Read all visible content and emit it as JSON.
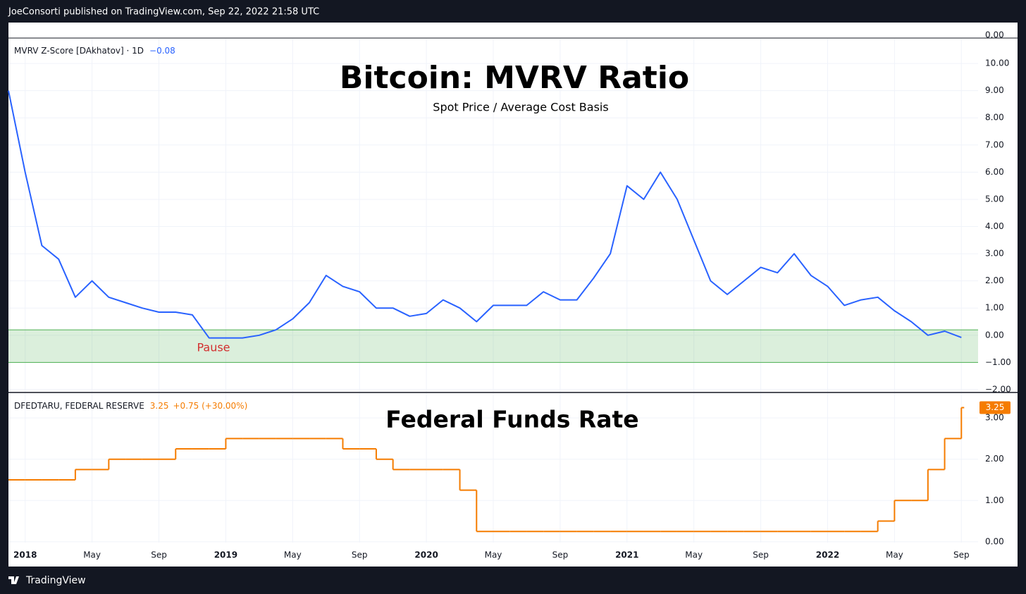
{
  "header": {
    "text": "JoeConsorti published on TradingView.com, Sep 22, 2022 21:58 UTC",
    "top_pane_label": "0.00"
  },
  "footer": {
    "brand": "TradingView"
  },
  "chart_data": [
    {
      "type": "line",
      "title": "Bitcoin: MVRV Ratio",
      "subtitle": "Spot Price / Average Cost Basis",
      "legend_value": "−0.08",
      "annotations": [
        {
          "text": "Pause"
        }
      ],
      "band": [
        -1,
        0.2
      ],
      "band_color": "#4caf50",
      "grid": true,
      "x": [
        "2017-12",
        "2018-01",
        "2018-02",
        "2018-03",
        "2018-04",
        "2018-05",
        "2018-06",
        "2018-07",
        "2018-08",
        "2018-09",
        "2018-10",
        "2018-11",
        "2018-12",
        "2019-01",
        "2019-02",
        "2019-03",
        "2019-04",
        "2019-05",
        "2019-06",
        "2019-07",
        "2019-08",
        "2019-09",
        "2019-10",
        "2019-11",
        "2019-12",
        "2020-01",
        "2020-02",
        "2020-03",
        "2020-04",
        "2020-05",
        "2020-06",
        "2020-07",
        "2020-08",
        "2020-09",
        "2020-10",
        "2020-11",
        "2020-12",
        "2021-01",
        "2021-02",
        "2021-03",
        "2021-04",
        "2021-05",
        "2021-06",
        "2021-07",
        "2021-08",
        "2021-09",
        "2021-10",
        "2021-11",
        "2021-12",
        "2022-01",
        "2022-02",
        "2022-03",
        "2022-04",
        "2022-05",
        "2022-06",
        "2022-07",
        "2022-08",
        "2022-09"
      ],
      "series": [
        {
          "name": "MVRV Z-Score [DAkhatov] · 1D",
          "color": "#2962ff",
          "values": [
            9.0,
            6.0,
            3.3,
            2.8,
            1.4,
            2.0,
            1.4,
            1.2,
            1.0,
            0.85,
            0.85,
            0.75,
            -0.1,
            -0.1,
            -0.1,
            0.0,
            0.2,
            0.6,
            1.2,
            2.2,
            1.8,
            1.6,
            1.0,
            1.0,
            0.7,
            0.8,
            1.3,
            1.0,
            0.5,
            1.1,
            1.1,
            1.1,
            1.6,
            1.3,
            1.3,
            2.1,
            3.0,
            5.5,
            5.0,
            6.0,
            5.0,
            3.5,
            2.0,
            1.5,
            2.0,
            2.5,
            2.3,
            3.0,
            2.2,
            1.8,
            1.1,
            1.3,
            1.4,
            0.9,
            0.5,
            0.0,
            0.15,
            -0.08
          ]
        }
      ],
      "xlim": [
        "2017-12",
        "2022-10"
      ],
      "xticks": [
        {
          "value": "2018-01",
          "label": "2018"
        },
        {
          "value": "2018-05",
          "label": "May"
        },
        {
          "value": "2018-09",
          "label": "Sep"
        },
        {
          "value": "2019-01",
          "label": "2019"
        },
        {
          "value": "2019-05",
          "label": "May"
        },
        {
          "value": "2019-09",
          "label": "Sep"
        },
        {
          "value": "2020-01",
          "label": "2020"
        },
        {
          "value": "2020-05",
          "label": "May"
        },
        {
          "value": "2020-09",
          "label": "Sep"
        },
        {
          "value": "2021-01",
          "label": "2021"
        },
        {
          "value": "2021-05",
          "label": "May"
        },
        {
          "value": "2021-09",
          "label": "Sep"
        },
        {
          "value": "2022-01",
          "label": "2022"
        },
        {
          "value": "2022-05",
          "label": "May"
        },
        {
          "value": "2022-09",
          "label": "Sep"
        }
      ],
      "ylim": [
        -2.08,
        10.91
      ],
      "yticks": [
        {
          "value": -2,
          "label": "−2.00"
        },
        {
          "value": -1,
          "label": "−1.00"
        },
        {
          "value": 0,
          "label": "0.00"
        },
        {
          "value": 1,
          "label": "1.00"
        },
        {
          "value": 2,
          "label": "2.00"
        },
        {
          "value": 3,
          "label": "3.00"
        },
        {
          "value": 4,
          "label": "4.00"
        },
        {
          "value": 5,
          "label": "5.00"
        },
        {
          "value": 6,
          "label": "6.00"
        },
        {
          "value": 7,
          "label": "7.00"
        },
        {
          "value": 8,
          "label": "8.00"
        },
        {
          "value": 9,
          "label": "9.00"
        },
        {
          "value": 10,
          "label": "10.00"
        }
      ]
    },
    {
      "type": "step",
      "title": "Federal Funds Rate",
      "legend_change": "+0.75 (+30.00%)",
      "grid": true,
      "x": [
        "2017-12",
        "2018-01",
        "2018-02",
        "2018-03",
        "2018-04",
        "2018-05",
        "2018-06",
        "2018-07",
        "2018-08",
        "2018-09",
        "2018-10",
        "2018-11",
        "2018-12",
        "2019-01",
        "2019-02",
        "2019-03",
        "2019-04",
        "2019-05",
        "2019-06",
        "2019-07",
        "2019-08",
        "2019-09",
        "2019-10",
        "2019-11",
        "2019-12",
        "2020-01",
        "2020-02",
        "2020-03",
        "2020-04",
        "2020-05",
        "2020-06",
        "2020-07",
        "2020-08",
        "2020-09",
        "2020-10",
        "2020-11",
        "2020-12",
        "2021-01",
        "2021-02",
        "2021-03",
        "2021-04",
        "2021-05",
        "2021-06",
        "2021-07",
        "2021-08",
        "2021-09",
        "2021-10",
        "2021-11",
        "2021-12",
        "2022-01",
        "2022-02",
        "2022-03",
        "2022-04",
        "2022-05",
        "2022-06",
        "2022-07",
        "2022-08",
        "2022-09"
      ],
      "series": [
        {
          "name": "DFEDTARU, FEDERAL RESERVE",
          "color": "#f57c00",
          "values": [
            1.5,
            1.5,
            1.5,
            1.5,
            1.75,
            1.75,
            2.0,
            2.0,
            2.0,
            2.0,
            2.25,
            2.25,
            2.25,
            2.5,
            2.5,
            2.5,
            2.5,
            2.5,
            2.5,
            2.5,
            2.25,
            2.25,
            2.0,
            1.75,
            1.75,
            1.75,
            1.75,
            1.25,
            0.25,
            0.25,
            0.25,
            0.25,
            0.25,
            0.25,
            0.25,
            0.25,
            0.25,
            0.25,
            0.25,
            0.25,
            0.25,
            0.25,
            0.25,
            0.25,
            0.25,
            0.25,
            0.25,
            0.25,
            0.25,
            0.25,
            0.25,
            0.25,
            0.5,
            1.0,
            1.0,
            1.75,
            2.5,
            3.25
          ]
        }
      ],
      "ylim": [
        -0.02,
        3.6
      ],
      "yticks": [
        {
          "value": 0,
          "label": "0.00"
        },
        {
          "value": 1,
          "label": "1.00"
        },
        {
          "value": 2,
          "label": "2.00"
        },
        {
          "value": 3,
          "label": "3.00"
        }
      ]
    }
  ]
}
